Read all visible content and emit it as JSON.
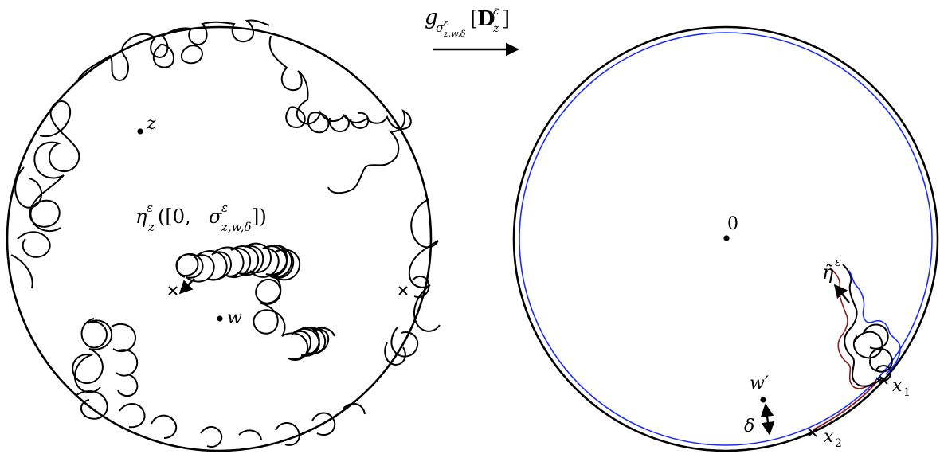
{
  "figure": {
    "map": {
      "label_g": "g",
      "label_sub_sigma": "σ",
      "label_sub_sigma_sup": "ε",
      "label_sub_sigma_sub": "z,w,δ",
      "label_lbracket": "[",
      "label_D": "D",
      "label_D_sup": "ε",
      "label_D_sub": "z",
      "label_rbracket": "]"
    },
    "left_disk": {
      "point_z": "z",
      "point_w": "w",
      "curve_label_eta": "η",
      "curve_label_eta_sup": "ε",
      "curve_label_eta_sub": "z",
      "curve_label_args_open": "([0, ",
      "curve_label_sigma": "σ",
      "curve_label_sigma_sup": "ε",
      "curve_label_sigma_sub": "z,w,δ",
      "curve_label_args_close": "])"
    },
    "right_disk": {
      "point_origin": "0",
      "point_w_prime": "w′",
      "delta": "δ",
      "eta_tilde": "η̃",
      "eta_tilde_sup": "ε",
      "x1": "x",
      "x1_sub": "1",
      "x2": "x",
      "x2_sub": "2"
    },
    "colors": {
      "ink": "#000000",
      "inner_circle": "#1a2cff",
      "boundary_arc": "#8b1a1a"
    }
  }
}
